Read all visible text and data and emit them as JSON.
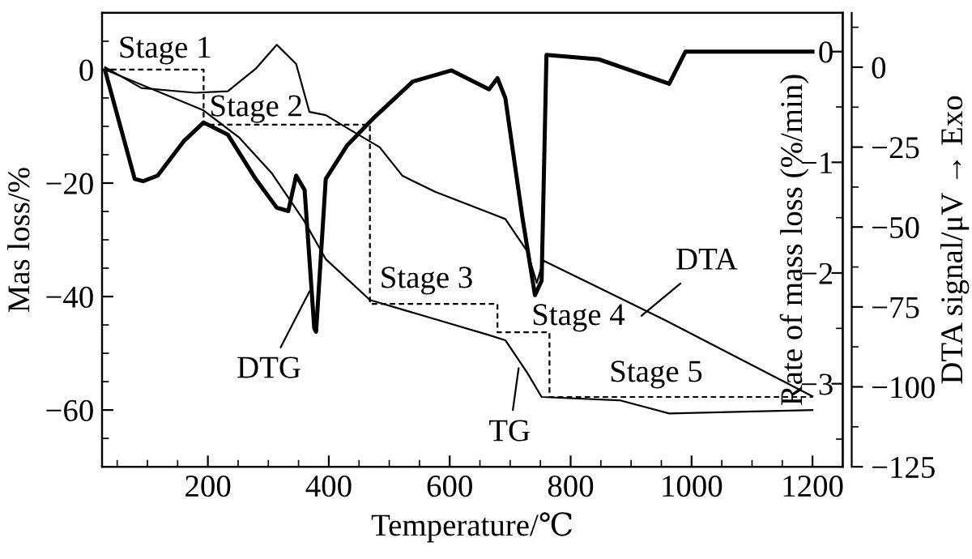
{
  "chart_data": {
    "type": "line",
    "xlabel": "Temperature/℃",
    "ylabel": "Mas loss/%",
    "y2label": "Rate of mass loss (%/min)",
    "y3label": "DTA signal/μV → Exo",
    "xlim": [
      25,
      1250
    ],
    "ylim": [
      -70,
      10
    ],
    "y2lim": [
      -3.75,
      0.35
    ],
    "y3lim": [
      -125,
      17
    ],
    "xticks": [
      {
        "value": 50,
        "label": null
      },
      {
        "value": 100,
        "label": null
      },
      {
        "value": 150,
        "label": null
      },
      200,
      {
        "value": 250,
        "label": null
      },
      {
        "value": 300,
        "label": null
      },
      {
        "value": 350,
        "label": null
      },
      400,
      {
        "value": 450,
        "label": null
      },
      {
        "value": 500,
        "label": null
      },
      {
        "value": 550,
        "label": null
      },
      600,
      {
        "value": 650,
        "label": null
      },
      {
        "value": 700,
        "label": null
      },
      {
        "value": 750,
        "label": null
      },
      800,
      {
        "value": 850,
        "label": null
      },
      {
        "value": 900,
        "label": null
      },
      {
        "value": 950,
        "label": null
      },
      1000,
      {
        "value": 1050,
        "label": null
      },
      {
        "value": 1100,
        "label": null
      },
      {
        "value": 1150,
        "label": null
      },
      1200
    ],
    "yticks": [
      {
        "value": -65,
        "label": null
      },
      -60,
      {
        "value": -55,
        "label": null
      },
      {
        "value": -50,
        "label": null
      },
      {
        "value": -45,
        "label": null
      },
      -40,
      {
        "value": -35,
        "label": null
      },
      {
        "value": -30,
        "label": null
      },
      {
        "value": -25,
        "label": null
      },
      -20,
      {
        "value": -15,
        "label": null
      },
      {
        "value": -10,
        "label": null
      },
      {
        "value": -5,
        "label": null
      },
      0,
      {
        "value": 5,
        "label": null
      }
    ],
    "y2ticks": [
      {
        "value": -3.5,
        "label": null
      },
      -3,
      {
        "value": -2.5,
        "label": null
      },
      -2,
      {
        "value": -1.5,
        "label": null
      },
      -1,
      {
        "value": -0.5,
        "label": null
      },
      0
    ],
    "y3ticks": [
      -125,
      {
        "value": -112.5,
        "label": null
      },
      -100,
      {
        "value": -87.5,
        "label": null
      },
      -75,
      {
        "value": -62.5,
        "label": null
      },
      -50,
      {
        "value": -37.5,
        "label": null
      },
      -25,
      {
        "value": -12.5,
        "label": null
      },
      0,
      {
        "value": 12.5,
        "label": null
      }
    ],
    "grid": false,
    "marker": "none",
    "series": [
      {
        "color": "#000000",
        "line_style": "solid",
        "x": [
          30,
          193,
          252,
          306,
          360,
          395,
          468,
          576,
          665,
          692,
          728,
          752,
          882,
          963,
          1200
        ],
        "values": [
          0,
          -7.2,
          -12,
          -18.3,
          -26.8,
          -33.4,
          -40.6,
          -44,
          -46.8,
          -47.7,
          -53.4,
          -57.7,
          -58.3,
          -60.6,
          -60
        ]
      },
      {
        "color": "#000000",
        "line_style": "solid",
        "axis": "y2",
        "x": [
          30,
          79,
          93,
          117,
          160,
          193,
          233,
          279,
          314,
          333,
          346,
          360,
          376,
          379,
          395,
          430,
          476,
          539,
          603,
          665,
          679,
          692,
          720,
          741,
          752,
          760,
          847,
          963,
          990,
          1200
        ],
        "values": [
          -0.17,
          -1.15,
          -1.17,
          -1.12,
          -0.81,
          -0.64,
          -0.75,
          -1.15,
          -1.41,
          -1.44,
          -1.12,
          -1.25,
          -2.5,
          -2.53,
          -1.15,
          -0.85,
          -0.59,
          -0.27,
          -0.17,
          -0.34,
          -0.24,
          -0.42,
          -1.49,
          -2.2,
          -2.07,
          -0.03,
          -0.07,
          -0.29,
          0,
          0
        ]
      },
      {
        "color": "#000000",
        "line_style": "solid",
        "axis": "y3",
        "x": [
          30,
          90,
          179,
          233,
          279,
          314,
          346,
          368,
          395,
          430,
          484,
          522,
          576,
          665,
          692,
          728,
          744,
          755,
          847,
          955,
          1200
        ],
        "values": [
          0,
          -6.5,
          -8,
          -7.5,
          -0.5,
          7,
          1,
          -14,
          -15,
          -19,
          -25,
          -34,
          -39,
          -45.5,
          -47.5,
          -57.5,
          -67.5,
          -60.5,
          -69,
          -79,
          -103
        ]
      },
      {
        "color": "#000000",
        "line_style": "dashed",
        "x": [
          25,
          193,
          193,
          468,
          468,
          679,
          679,
          765,
          765,
          1200
        ],
        "values": [
          0,
          0,
          -9.7,
          -9.7,
          -41.3,
          -41.3,
          -46.3,
          -46.3,
          -57.7,
          -57.7
        ]
      }
    ],
    "annotations": [
      "Stage 1",
      "Stage 2",
      "Stage 3",
      "Stage 4",
      "Stage 5",
      {
        "text": "DTG",
        "x": 368,
        "y": -39.1
      },
      {
        "text": "TG",
        "x": 714,
        "y": -52.6
      },
      {
        "text": "DTA",
        "x": 917,
        "y": -43.4
      }
    ]
  }
}
